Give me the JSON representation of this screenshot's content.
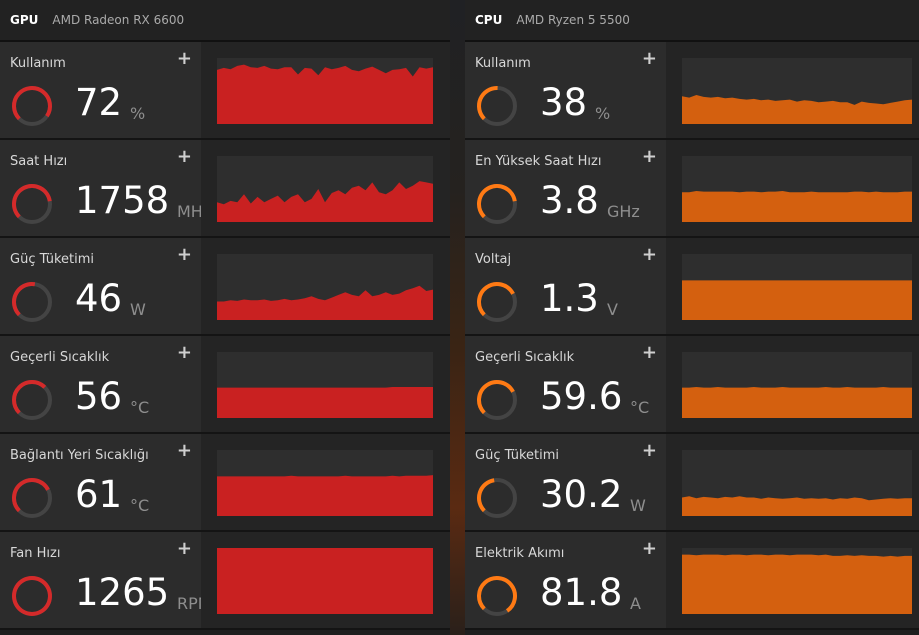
{
  "colors": {
    "gpu_accent": "#d42a2a",
    "gpu_fill": "#c92121",
    "cpu_accent": "#ff7a14",
    "cpu_fill": "#d4600f",
    "gauge_track": "#444444"
  },
  "gpu": {
    "tag": "GPU",
    "name": "AMD Radeon RX 6600",
    "metrics": [
      {
        "label": "Kullanım",
        "value": "72",
        "unit": "%",
        "level": 0.72,
        "series": [
          0.82,
          0.85,
          0.83,
          0.88,
          0.9,
          0.86,
          0.85,
          0.88,
          0.84,
          0.83,
          0.86,
          0.86,
          0.75,
          0.85,
          0.84,
          0.74,
          0.86,
          0.83,
          0.85,
          0.88,
          0.82,
          0.8,
          0.84,
          0.87,
          0.82,
          0.77,
          0.82,
          0.83,
          0.85,
          0.72,
          0.86,
          0.84,
          0.86
        ]
      },
      {
        "label": "Saat Hızı",
        "value": "1758",
        "unit": "MHz",
        "level": 0.6,
        "series": [
          0.3,
          0.27,
          0.32,
          0.3,
          0.42,
          0.28,
          0.38,
          0.3,
          0.35,
          0.4,
          0.3,
          0.38,
          0.42,
          0.3,
          0.35,
          0.5,
          0.3,
          0.44,
          0.48,
          0.42,
          0.52,
          0.55,
          0.48,
          0.6,
          0.45,
          0.42,
          0.48,
          0.6,
          0.5,
          0.55,
          0.62,
          0.6,
          0.58
        ]
      },
      {
        "label": "Güç Tüketimi",
        "value": "46",
        "unit": "W",
        "level": 0.4,
        "series": [
          0.28,
          0.28,
          0.3,
          0.29,
          0.31,
          0.3,
          0.3,
          0.31,
          0.29,
          0.3,
          0.32,
          0.3,
          0.31,
          0.33,
          0.36,
          0.32,
          0.3,
          0.34,
          0.38,
          0.42,
          0.38,
          0.36,
          0.45,
          0.36,
          0.38,
          0.42,
          0.38,
          0.4,
          0.45,
          0.48,
          0.52,
          0.44,
          0.46
        ]
      },
      {
        "label": "Geçerli Sıcaklık",
        "value": "56",
        "unit": "°C",
        "level": 0.5,
        "series": [
          0.46,
          0.46,
          0.46,
          0.46,
          0.46,
          0.46,
          0.46,
          0.46,
          0.46,
          0.46,
          0.46,
          0.46,
          0.46,
          0.46,
          0.46,
          0.46,
          0.46,
          0.46,
          0.46,
          0.46,
          0.46,
          0.46,
          0.46,
          0.46,
          0.46,
          0.46,
          0.47,
          0.47,
          0.47,
          0.47,
          0.47,
          0.47,
          0.47
        ]
      },
      {
        "label": "Bağlantı Yeri Sıcaklığı",
        "value": "61",
        "unit": "°C",
        "level": 0.55,
        "series": [
          0.6,
          0.6,
          0.6,
          0.6,
          0.6,
          0.6,
          0.6,
          0.6,
          0.6,
          0.6,
          0.6,
          0.61,
          0.6,
          0.6,
          0.6,
          0.6,
          0.6,
          0.6,
          0.6,
          0.61,
          0.6,
          0.6,
          0.6,
          0.6,
          0.6,
          0.6,
          0.61,
          0.6,
          0.61,
          0.61,
          0.61,
          0.61,
          0.62
        ]
      },
      {
        "label": "Fan Hızı",
        "value": "1265",
        "unit": "RPM",
        "level": 1.0,
        "series": [
          1,
          1,
          1,
          1,
          1,
          1,
          1,
          1,
          1,
          1,
          1,
          1,
          1,
          1,
          1,
          1,
          1,
          1,
          1,
          1,
          1,
          1,
          1,
          1,
          1,
          1,
          1,
          1,
          1,
          1,
          1,
          1,
          1
        ]
      }
    ]
  },
  "cpu": {
    "tag": "CPU",
    "name": "AMD Ryzen 5 5500",
    "metrics": [
      {
        "label": "Kullanım",
        "value": "38",
        "unit": "%",
        "level": 0.38,
        "series": [
          0.42,
          0.4,
          0.44,
          0.41,
          0.4,
          0.41,
          0.39,
          0.4,
          0.38,
          0.37,
          0.38,
          0.36,
          0.37,
          0.35,
          0.36,
          0.37,
          0.34,
          0.36,
          0.35,
          0.33,
          0.34,
          0.35,
          0.33,
          0.33,
          0.29,
          0.34,
          0.32,
          0.31,
          0.3,
          0.32,
          0.34,
          0.36,
          0.37
        ]
      },
      {
        "label": "En Yüksek Saat Hızı",
        "value": "3.8",
        "unit": "GHz",
        "level": 0.6,
        "series": [
          0.45,
          0.45,
          0.47,
          0.46,
          0.46,
          0.46,
          0.46,
          0.46,
          0.45,
          0.46,
          0.46,
          0.45,
          0.46,
          0.46,
          0.47,
          0.45,
          0.45,
          0.45,
          0.46,
          0.45,
          0.45,
          0.45,
          0.45,
          0.45,
          0.46,
          0.46,
          0.45,
          0.46,
          0.45,
          0.45,
          0.45,
          0.46,
          0.46
        ]
      },
      {
        "label": "Voltaj",
        "value": "1.3",
        "unit": "V",
        "level": 0.55,
        "series": [
          0.6,
          0.6,
          0.6,
          0.6,
          0.6,
          0.6,
          0.6,
          0.6,
          0.6,
          0.6,
          0.6,
          0.6,
          0.6,
          0.6,
          0.6,
          0.6,
          0.6,
          0.6,
          0.6,
          0.6,
          0.6,
          0.6,
          0.6,
          0.6,
          0.6,
          0.6,
          0.6,
          0.6,
          0.6,
          0.6,
          0.6,
          0.6,
          0.6
        ]
      },
      {
        "label": "Geçerli Sıcaklık",
        "value": "59.6",
        "unit": "°C",
        "level": 0.55,
        "series": [
          0.46,
          0.46,
          0.47,
          0.46,
          0.46,
          0.47,
          0.46,
          0.46,
          0.46,
          0.46,
          0.47,
          0.46,
          0.46,
          0.46,
          0.47,
          0.46,
          0.46,
          0.46,
          0.46,
          0.46,
          0.47,
          0.46,
          0.46,
          0.47,
          0.46,
          0.46,
          0.46,
          0.46,
          0.47,
          0.46,
          0.46,
          0.46,
          0.46
        ]
      },
      {
        "label": "Güç Tüketimi",
        "value": "30.2",
        "unit": "W",
        "level": 0.35,
        "series": [
          0.28,
          0.3,
          0.27,
          0.29,
          0.28,
          0.27,
          0.29,
          0.28,
          0.3,
          0.28,
          0.28,
          0.26,
          0.28,
          0.27,
          0.26,
          0.27,
          0.28,
          0.26,
          0.27,
          0.26,
          0.27,
          0.25,
          0.27,
          0.26,
          0.28,
          0.27,
          0.24,
          0.25,
          0.26,
          0.27,
          0.26,
          0.27,
          0.27
        ]
      },
      {
        "label": "Elektrik Akımı",
        "value": "81.8",
        "unit": "A",
        "level": 0.78,
        "series": [
          0.9,
          0.9,
          0.89,
          0.9,
          0.9,
          0.9,
          0.89,
          0.9,
          0.9,
          0.89,
          0.9,
          0.9,
          0.89,
          0.9,
          0.9,
          0.89,
          0.9,
          0.9,
          0.9,
          0.89,
          0.9,
          0.88,
          0.88,
          0.89,
          0.88,
          0.89,
          0.88,
          0.88,
          0.87,
          0.88,
          0.87,
          0.88,
          0.88
        ]
      }
    ]
  }
}
